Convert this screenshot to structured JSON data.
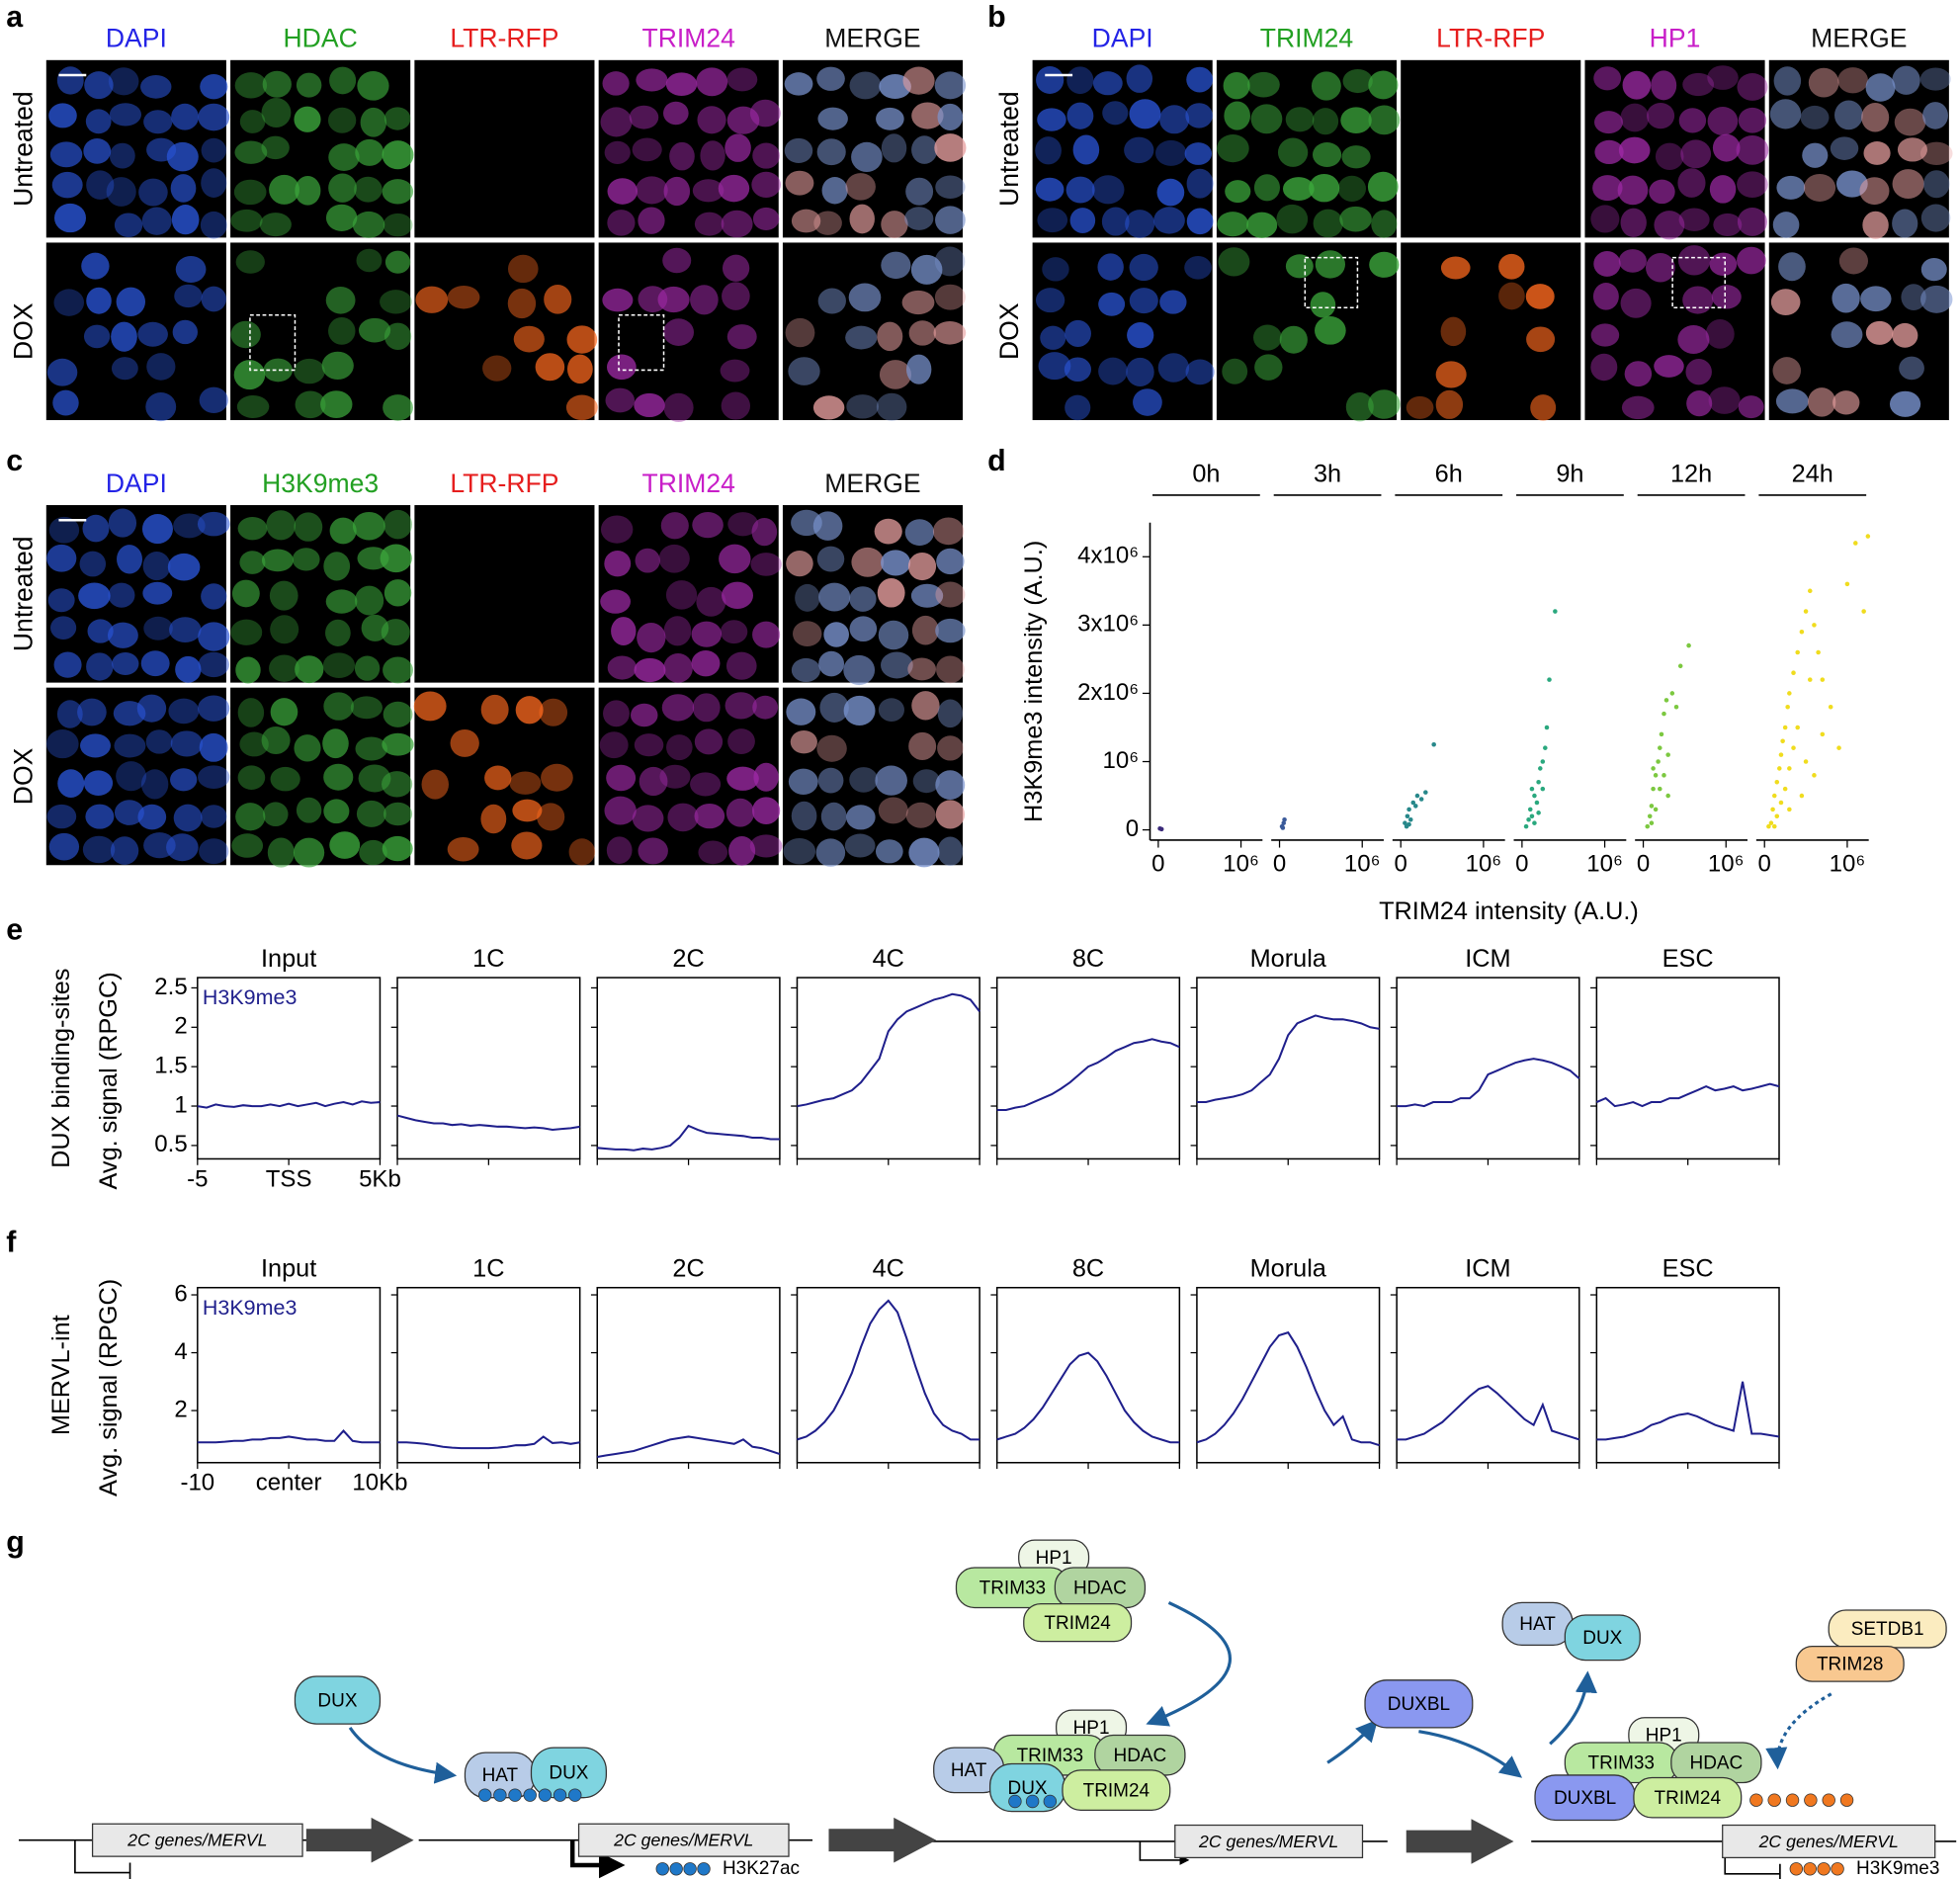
{
  "micrographs": [
    {
      "panel_label": "a",
      "columns": [
        {
          "name": "DAPI",
          "color": "#2323e6"
        },
        {
          "name": "HDAC",
          "color": "#22a022"
        },
        {
          "name": "LTR-RFP",
          "color": "#e61e1e"
        },
        {
          "name": "TRIM24",
          "color": "#c81ec8"
        },
        {
          "name": "MERGE",
          "color": "#111111"
        }
      ],
      "rows": [
        "Untreated",
        "DOX"
      ]
    },
    {
      "panel_label": "b",
      "columns": [
        {
          "name": "DAPI",
          "color": "#2323e6"
        },
        {
          "name": "TRIM24",
          "color": "#22a022"
        },
        {
          "name": "LTR-RFP",
          "color": "#e61e1e"
        },
        {
          "name": "HP1",
          "color": "#c81ec8"
        },
        {
          "name": "MERGE",
          "color": "#111111"
        }
      ],
      "rows": [
        "Untreated",
        "DOX"
      ]
    },
    {
      "panel_label": "c",
      "columns": [
        {
          "name": "DAPI",
          "color": "#2323e6"
        },
        {
          "name": "H3K9me3",
          "color": "#22a022"
        },
        {
          "name": "LTR-RFP",
          "color": "#e61e1e"
        },
        {
          "name": "TRIM24",
          "color": "#c81ec8"
        },
        {
          "name": "MERGE",
          "color": "#111111"
        }
      ],
      "rows": [
        "Untreated",
        "DOX"
      ]
    }
  ],
  "chart_data": [
    {
      "panel_label": "d",
      "type": "scatter",
      "x_label": "TRIM24 intensity (A.U.)",
      "y_label": "H3K9me3 intensity (A.U.)",
      "xlim": [
        -100000,
        1260000
      ],
      "xticks": [
        0,
        {
          "value": 1000000,
          "label": "10⁶"
        }
      ],
      "ylim": [
        -150000,
        4500000
      ],
      "yticks": [
        0,
        {
          "value": 1000000,
          "label": "10⁶"
        },
        {
          "value": 2000000,
          "label": "2x10⁶"
        },
        {
          "value": 3000000,
          "label": "3x10⁶"
        },
        {
          "value": 4000000,
          "label": "4x10⁶"
        }
      ],
      "series": [
        {
          "name": "0h",
          "color": "#3b2a7a",
          "x": [
            20000,
            40000
          ],
          "values": [
            20000,
            10000
          ]
        },
        {
          "name": "3h",
          "color": "#3a5a9a",
          "x": [
            30000,
            50000,
            60000,
            40000
          ],
          "values": [
            50000,
            100000,
            150000,
            30000
          ]
        },
        {
          "name": "6h",
          "color": "#27888a",
          "x": [
            50000,
            80000,
            100000,
            120000,
            150000,
            200000,
            250000,
            300000,
            400000,
            70000,
            100000,
            180000
          ],
          "values": [
            100000,
            200000,
            300000,
            150000,
            400000,
            500000,
            450000,
            550000,
            1250000,
            50000,
            80000,
            350000
          ]
        },
        {
          "name": "9h",
          "color": "#2aa87e",
          "x": [
            50000,
            80000,
            100000,
            120000,
            150000,
            180000,
            200000,
            220000,
            250000,
            280000,
            300000,
            330000,
            400000,
            150000,
            120000,
            200000,
            250000
          ],
          "values": [
            50000,
            150000,
            300000,
            200000,
            500000,
            400000,
            700000,
            900000,
            1000000,
            1200000,
            1500000,
            2200000,
            3200000,
            100000,
            600000,
            250000,
            600000
          ]
        },
        {
          "name": "12h",
          "color": "#7cc840",
          "x": [
            50000,
            80000,
            100000,
            120000,
            150000,
            180000,
            200000,
            220000,
            250000,
            280000,
            300000,
            350000,
            450000,
            550000,
            100000,
            150000,
            200000,
            250000,
            300000,
            120000,
            400000
          ],
          "values": [
            50000,
            200000,
            350000,
            600000,
            800000,
            1000000,
            1200000,
            1400000,
            1700000,
            1900000,
            500000,
            2000000,
            2400000,
            2700000,
            100000,
            300000,
            600000,
            800000,
            1100000,
            900000,
            1800000
          ]
        },
        {
          "name": "24h",
          "color": "#f0dc1e",
          "x": [
            50000,
            80000,
            100000,
            120000,
            150000,
            180000,
            200000,
            220000,
            250000,
            280000,
            300000,
            350000,
            400000,
            450000,
            500000,
            550000,
            600000,
            700000,
            800000,
            900000,
            1000000,
            1100000,
            1250000,
            1200000,
            150000,
            200000,
            250000,
            300000,
            350000,
            400000,
            500000,
            600000,
            700000,
            120000,
            300000,
            450000,
            550000,
            650000
          ],
          "values": [
            50000,
            100000,
            300000,
            500000,
            700000,
            900000,
            1100000,
            1300000,
            1500000,
            1800000,
            2000000,
            2300000,
            2600000,
            2900000,
            3200000,
            3500000,
            3000000,
            2200000,
            1800000,
            1200000,
            3600000,
            4200000,
            4300000,
            3200000,
            200000,
            400000,
            600000,
            900000,
            1200000,
            1500000,
            1000000,
            800000,
            1400000,
            50000,
            300000,
            500000,
            2200000,
            2600000
          ]
        }
      ]
    },
    {
      "panel_label": "e",
      "type": "line",
      "row_label": "DUX binding-sites",
      "y_label": "Avg. signal (RPGC)",
      "annotation": "H3K9me3",
      "color": "#1f1f8c",
      "x": [
        -5,
        -4.5,
        -4,
        -3.5,
        -3,
        -2.5,
        -2,
        -1.5,
        -1,
        -0.5,
        0,
        0.5,
        1,
        1.5,
        2,
        2.5,
        3,
        3.5,
        4,
        4.5,
        5
      ],
      "xlim": [
        -5,
        5
      ],
      "xticks": [
        -5,
        {
          "value": 0,
          "label": "TSS"
        },
        {
          "value": 5,
          "label": "5Kb"
        }
      ],
      "ylim": [
        0.33,
        2.63
      ],
      "yticks": [
        0.5,
        1,
        1.5,
        2,
        2.5
      ],
      "series": [
        {
          "name": "Input",
          "values": [
            1.0,
            0.98,
            1.02,
            1.0,
            0.99,
            1.01,
            1.0,
            1.0,
            1.02,
            1.0,
            1.03,
            1.0,
            1.02,
            1.04,
            1.0,
            1.03,
            1.05,
            1.02,
            1.06,
            1.04,
            1.05
          ]
        },
        {
          "name": "1C",
          "values": [
            0.88,
            0.85,
            0.82,
            0.8,
            0.78,
            0.78,
            0.76,
            0.77,
            0.75,
            0.76,
            0.75,
            0.74,
            0.74,
            0.73,
            0.72,
            0.73,
            0.72,
            0.7,
            0.71,
            0.72,
            0.74
          ]
        },
        {
          "name": "2C",
          "values": [
            0.47,
            0.46,
            0.45,
            0.45,
            0.44,
            0.46,
            0.45,
            0.47,
            0.5,
            0.6,
            0.75,
            0.7,
            0.66,
            0.65,
            0.64,
            0.63,
            0.62,
            0.6,
            0.6,
            0.58,
            0.58
          ]
        },
        {
          "name": "4C",
          "values": [
            1.0,
            1.02,
            1.05,
            1.08,
            1.1,
            1.15,
            1.2,
            1.3,
            1.45,
            1.6,
            1.95,
            2.1,
            2.2,
            2.25,
            2.3,
            2.35,
            2.38,
            2.42,
            2.4,
            2.35,
            2.2
          ]
        },
        {
          "name": "8C",
          "values": [
            0.95,
            0.95,
            0.98,
            1.0,
            1.05,
            1.1,
            1.15,
            1.22,
            1.3,
            1.4,
            1.5,
            1.55,
            1.62,
            1.7,
            1.75,
            1.8,
            1.82,
            1.85,
            1.82,
            1.8,
            1.75
          ]
        },
        {
          "name": "Morula",
          "values": [
            1.05,
            1.05,
            1.08,
            1.1,
            1.12,
            1.15,
            1.2,
            1.3,
            1.4,
            1.6,
            1.9,
            2.05,
            2.1,
            2.15,
            2.12,
            2.1,
            2.1,
            2.08,
            2.05,
            2.0,
            1.98
          ]
        },
        {
          "name": "ICM",
          "values": [
            1.0,
            1.0,
            1.02,
            1.0,
            1.05,
            1.05,
            1.05,
            1.1,
            1.1,
            1.2,
            1.4,
            1.45,
            1.5,
            1.55,
            1.58,
            1.6,
            1.58,
            1.55,
            1.5,
            1.45,
            1.35
          ]
        },
        {
          "name": "ESC",
          "values": [
            1.05,
            1.1,
            1.0,
            1.02,
            1.05,
            1.0,
            1.05,
            1.05,
            1.1,
            1.1,
            1.15,
            1.2,
            1.25,
            1.2,
            1.22,
            1.25,
            1.2,
            1.22,
            1.25,
            1.28,
            1.25
          ]
        }
      ]
    },
    {
      "panel_label": "f",
      "type": "line",
      "row_label": "MERVL-int",
      "y_label": "Avg. signal (RPGC)",
      "annotation": "H3K9me3",
      "color": "#1f1f8c",
      "x": [
        -10,
        -9,
        -8,
        -7,
        -6,
        -5,
        -4,
        -3,
        -2,
        -1,
        0,
        1,
        2,
        3,
        4,
        5,
        6,
        7,
        8,
        9,
        10
      ],
      "xlim": [
        -10,
        10
      ],
      "xticks": [
        -10,
        {
          "value": 0,
          "label": "center"
        },
        {
          "value": 10,
          "label": "10Kb"
        }
      ],
      "ylim": [
        0.2,
        6.25
      ],
      "yticks": [
        2,
        4,
        6
      ],
      "series": [
        {
          "name": "Input",
          "values": [
            0.9,
            0.9,
            0.9,
            0.92,
            0.95,
            0.95,
            1.0,
            1.0,
            1.05,
            1.05,
            1.1,
            1.05,
            1.0,
            1.0,
            0.95,
            0.95,
            1.3,
            0.95,
            0.9,
            0.9,
            0.9
          ]
        },
        {
          "name": "1C",
          "values": [
            0.9,
            0.9,
            0.88,
            0.85,
            0.8,
            0.75,
            0.72,
            0.7,
            0.7,
            0.7,
            0.7,
            0.72,
            0.75,
            0.8,
            0.8,
            0.85,
            1.1,
            0.88,
            0.9,
            0.85,
            0.9
          ]
        },
        {
          "name": "2C",
          "values": [
            0.4,
            0.45,
            0.5,
            0.55,
            0.6,
            0.7,
            0.8,
            0.9,
            1.0,
            1.05,
            1.1,
            1.05,
            1.0,
            0.95,
            0.9,
            0.85,
            1.0,
            0.75,
            0.7,
            0.6,
            0.5
          ]
        },
        {
          "name": "4C",
          "values": [
            1.0,
            1.1,
            1.3,
            1.6,
            2.0,
            2.6,
            3.3,
            4.2,
            5.0,
            5.5,
            5.8,
            5.4,
            4.5,
            3.5,
            2.6,
            1.9,
            1.5,
            1.3,
            1.2,
            1.0,
            1.0
          ]
        },
        {
          "name": "8C",
          "values": [
            1.0,
            1.1,
            1.2,
            1.4,
            1.7,
            2.1,
            2.6,
            3.1,
            3.6,
            3.9,
            4.0,
            3.7,
            3.2,
            2.6,
            2.0,
            1.6,
            1.3,
            1.1,
            1.0,
            0.9,
            0.9
          ]
        },
        {
          "name": "Morula",
          "values": [
            0.9,
            1.0,
            1.2,
            1.5,
            1.9,
            2.4,
            3.0,
            3.6,
            4.2,
            4.6,
            4.7,
            4.2,
            3.5,
            2.7,
            2.0,
            1.5,
            1.8,
            1.0,
            0.9,
            0.9,
            0.8
          ]
        },
        {
          "name": "ICM",
          "values": [
            1.0,
            1.0,
            1.1,
            1.2,
            1.4,
            1.6,
            1.9,
            2.2,
            2.5,
            2.75,
            2.85,
            2.6,
            2.3,
            2.0,
            1.7,
            1.5,
            2.2,
            1.3,
            1.2,
            1.1,
            1.0
          ]
        },
        {
          "name": "ESC",
          "values": [
            1.0,
            1.0,
            1.05,
            1.1,
            1.2,
            1.3,
            1.5,
            1.6,
            1.75,
            1.85,
            1.9,
            1.8,
            1.65,
            1.5,
            1.4,
            1.3,
            3.0,
            1.2,
            1.2,
            1.15,
            1.1
          ]
        }
      ]
    }
  ],
  "diagram": {
    "panel_label": "g",
    "labels": [
      "DUX",
      "2C genes/MERVL",
      "HAT",
      "DUX",
      "2C genes/MERVL",
      "HP1",
      "TRIM33",
      "HDAC",
      "TRIM24",
      "HP1",
      "TRIM33",
      "HDAC",
      "HAT",
      "DUX",
      "TRIM24",
      "2C genes/MERVL",
      "DUXBL",
      "HAT",
      "DUX",
      "SETDB1",
      "TRIM28",
      "HP1",
      "TRIM33",
      "HDAC",
      "DUXBL",
      "TRIM24",
      "2C genes/MERVL"
    ],
    "legend": [
      "H3K27ac",
      "H3K9me3"
    ]
  }
}
